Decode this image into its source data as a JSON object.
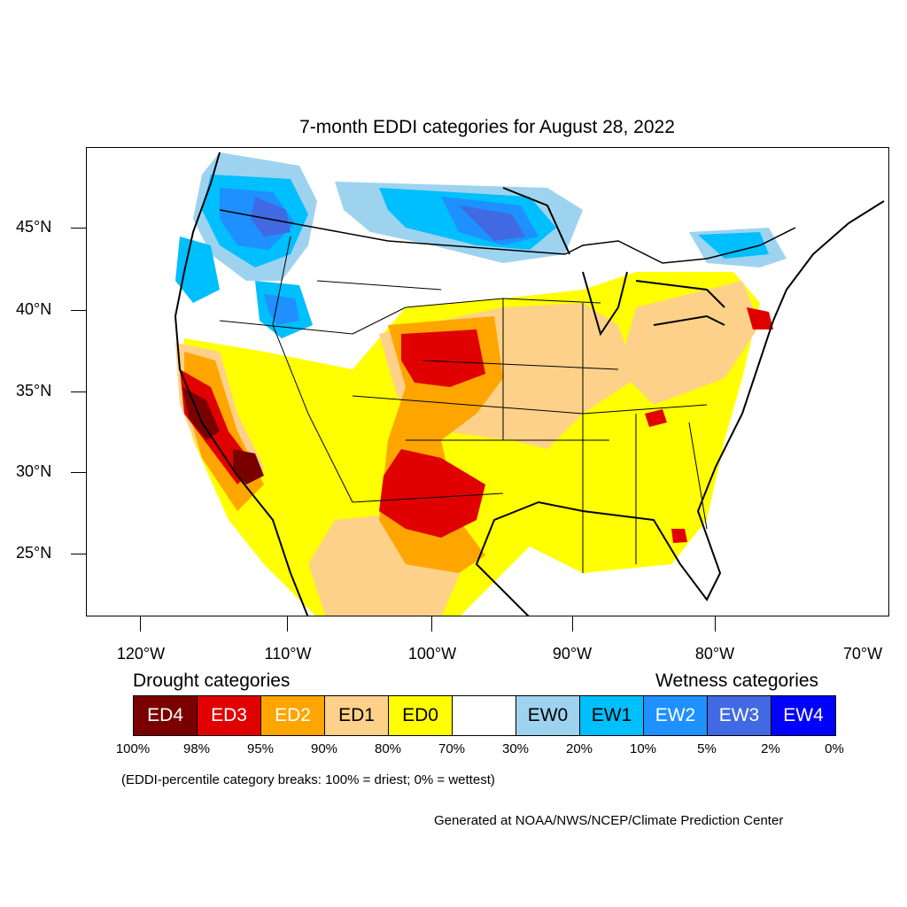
{
  "title": "7-month EDDI categories for August 28, 2022",
  "map": {
    "lat_labels": [
      "45°N",
      "40°N",
      "35°N",
      "30°N",
      "25°N"
    ],
    "lon_labels": [
      "120°W",
      "110°W",
      "100°W",
      "90°W",
      "80°W",
      "70°W"
    ]
  },
  "legend": {
    "drought_heading": "Drought categories",
    "wetness_heading": "Wetness categories",
    "categories": [
      {
        "label": "ED4",
        "color": "#7a0000",
        "text_color": "#ffffff"
      },
      {
        "label": "ED3",
        "color": "#e00000",
        "text_color": "#ffffff"
      },
      {
        "label": "ED2",
        "color": "#ffa500",
        "text_color": "#ffffff"
      },
      {
        "label": "ED1",
        "color": "#fdd189",
        "text_color": "#000000"
      },
      {
        "label": "ED0",
        "color": "#ffff00",
        "text_color": "#000000"
      },
      {
        "label": "",
        "color": "#ffffff",
        "text_color": "#000000"
      },
      {
        "label": "EW0",
        "color": "#9ed3ef",
        "text_color": "#000000"
      },
      {
        "label": "EW1",
        "color": "#00bfff",
        "text_color": "#000000"
      },
      {
        "label": "EW2",
        "color": "#1e90ff",
        "text_color": "#ffffff"
      },
      {
        "label": "EW3",
        "color": "#4169e1",
        "text_color": "#ffffff"
      },
      {
        "label": "EW4",
        "color": "#0000ff",
        "text_color": "#ffffff"
      }
    ],
    "percent_breaks": [
      "100%",
      "98%",
      "95%",
      "90%",
      "80%",
      "70%",
      "30%",
      "20%",
      "10%",
      "5%",
      "2%",
      "0%"
    ]
  },
  "note": "(EDDI-percentile category breaks: 100% = driest; 0% = wettest)",
  "credit": "Generated at NOAA/NWS/NCEP/Climate Prediction Center"
}
